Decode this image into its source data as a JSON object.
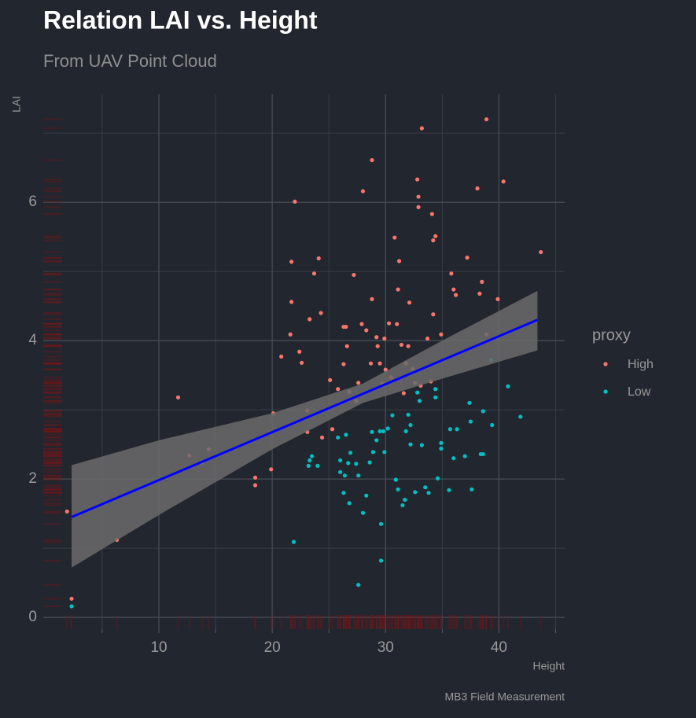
{
  "chart_data": {
    "type": "scatter",
    "title": "Relation LAI vs. Height",
    "subtitle": "From UAV Point Cloud",
    "x_label": "Height",
    "y_label": "LAI",
    "caption": "MB3 Field Measurement",
    "legend_title": "proxy",
    "legend_position": "right",
    "grid": true,
    "rug": true,
    "xlim": [
      -0.2,
      45.8
    ],
    "xticks": [
      10,
      20,
      30,
      40
    ],
    "x_minor_ticks": [
      5,
      15,
      25,
      35,
      45
    ],
    "ylim": [
      -0.17,
      7.56
    ],
    "yticks": [
      0,
      2,
      4,
      6
    ],
    "y_minor_ticks": [
      1,
      3,
      5,
      7
    ],
    "series": [
      {
        "name": "High",
        "color": "#f8766d",
        "x": [
          1.9,
          2.3,
          6.3,
          11.7,
          12.7,
          13.8,
          14.4,
          18.5,
          18.5,
          19.9,
          20.1,
          20.8,
          21.6,
          21.7,
          21.7,
          22.0,
          22.4,
          22.6,
          23.1,
          23.3,
          23.1,
          23.7,
          24.1,
          24.3,
          24.4,
          25.1,
          25.3,
          25.8,
          26.3,
          26.5,
          26.6,
          26.3,
          26.8,
          27.2,
          27.4,
          27.6,
          27.9,
          28.0,
          28.3,
          28.7,
          28.8,
          28.8,
          29.2,
          29.3,
          29.5,
          29.7,
          29.9,
          30.0,
          30.3,
          30.5,
          30.8,
          31.0,
          31.1,
          31.2,
          31.4,
          31.6,
          31.8,
          32.0,
          32.1,
          32.4,
          32.6,
          32.8,
          32.9,
          32.9,
          33.2,
          33.1,
          33.7,
          34.0,
          34.1,
          34.2,
          34.4,
          34.2,
          34.9,
          35.8,
          36.0,
          36.2,
          37.2,
          38.1,
          38.3,
          38.5,
          38.9,
          38.9,
          39.9,
          40.4,
          43.7
        ],
        "values": [
          1.53,
          0.27,
          1.12,
          3.18,
          2.34,
          2.24,
          2.43,
          2.02,
          1.91,
          2.14,
          2.95,
          3.77,
          4.09,
          4.56,
          5.14,
          6.01,
          3.84,
          3.68,
          2.99,
          4.31,
          2.68,
          4.97,
          5.19,
          4.4,
          2.6,
          3.43,
          2.72,
          3.3,
          4.2,
          4.2,
          3.92,
          3.66,
          3.26,
          4.95,
          3.13,
          3.39,
          4.24,
          6.16,
          4.15,
          3.67,
          6.61,
          4.6,
          4.05,
          3.92,
          3.67,
          3.38,
          4.03,
          3.58,
          4.25,
          3.47,
          5.49,
          4.24,
          4.74,
          5.15,
          3.94,
          3.24,
          3.67,
          3.92,
          4.55,
          3.59,
          3.39,
          6.33,
          6.08,
          5.93,
          7.07,
          3.35,
          4.03,
          3.41,
          5.83,
          5.45,
          5.51,
          4.38,
          4.09,
          4.97,
          4.74,
          4.66,
          5.2,
          6.2,
          4.68,
          4.85,
          7.2,
          4.09,
          4.6,
          6.3,
          5.28
        ]
      },
      {
        "name": "Low",
        "color": "#00bfc4",
        "x": [
          2.3,
          21.9,
          23.2,
          23.5,
          24.0,
          23.3,
          25.8,
          26.0,
          26.0,
          26.3,
          26.4,
          26.5,
          26.7,
          26.8,
          26.9,
          27.4,
          27.6,
          27.6,
          28.0,
          28.3,
          28.6,
          28.8,
          28.9,
          29.2,
          29.5,
          29.6,
          29.6,
          29.8,
          29.9,
          30.2,
          30.6,
          30.9,
          31.1,
          31.5,
          31.7,
          31.8,
          32.0,
          32.2,
          32.2,
          32.6,
          32.8,
          33.0,
          33.2,
          33.5,
          33.8,
          34.4,
          34.4,
          34.6,
          34.9,
          34.9,
          35.6,
          35.7,
          36.0,
          36.3,
          37.0,
          37.4,
          37.5,
          37.6,
          38.4,
          38.6,
          38.6,
          39.3,
          39.4,
          40.8,
          41.9
        ],
        "values": [
          0.16,
          1.09,
          2.19,
          2.33,
          2.19,
          2.27,
          2.6,
          2.27,
          2.1,
          1.8,
          2.05,
          2.64,
          2.23,
          1.65,
          2.38,
          2.22,
          2.05,
          0.47,
          1.51,
          1.76,
          2.24,
          2.68,
          2.39,
          2.56,
          2.69,
          1.35,
          0.82,
          2.69,
          2.39,
          2.73,
          2.92,
          1.99,
          1.85,
          1.62,
          1.7,
          2.69,
          2.93,
          2.5,
          2.78,
          1.81,
          3.25,
          3.13,
          2.49,
          1.88,
          1.8,
          3.3,
          3.18,
          2.01,
          2.52,
          2.44,
          1.84,
          2.72,
          2.3,
          2.72,
          2.33,
          3.1,
          2.83,
          1.85,
          2.36,
          2.36,
          2.98,
          3.72,
          2.78,
          3.34,
          2.9
        ]
      }
    ],
    "fit": {
      "color": "#0000ff",
      "x": [
        2.3,
        43.4
      ],
      "values": [
        1.45,
        4.3
      ]
    },
    "band": {
      "color": "#6b6b6b",
      "x": [
        2.3,
        10,
        20,
        28,
        35,
        43.4
      ],
      "lower": [
        0.72,
        1.48,
        2.43,
        3.1,
        3.45,
        3.86
      ],
      "upper": [
        2.2,
        2.56,
        2.95,
        3.38,
        4.0,
        4.72
      ]
    }
  }
}
